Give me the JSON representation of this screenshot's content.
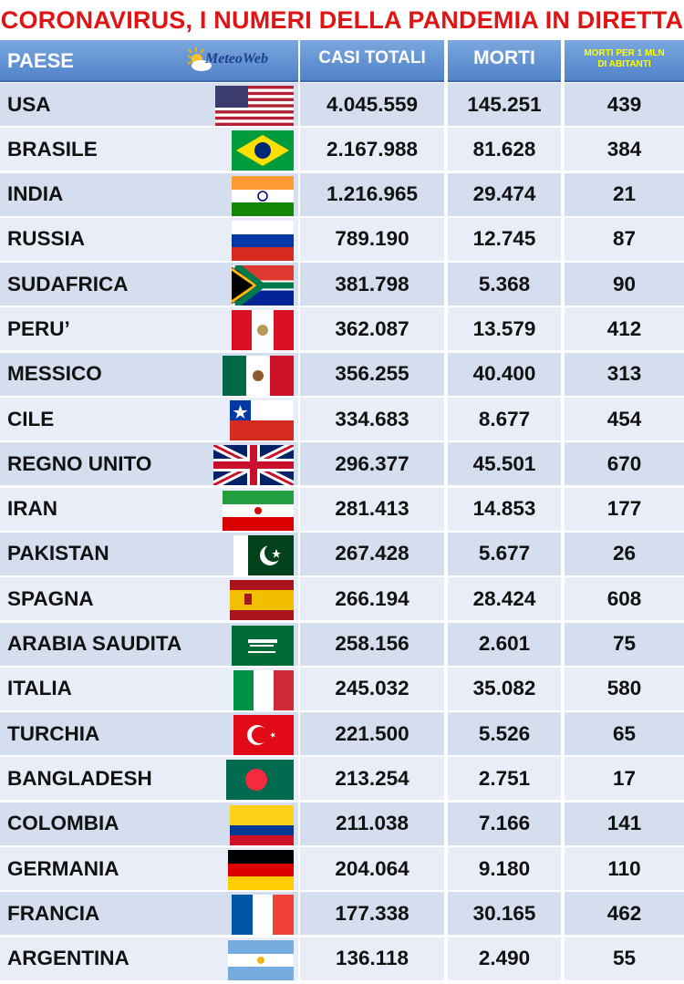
{
  "title": "CORONAVIRUS, I NUMERI DELLA PANDEMIA IN DIRETTA",
  "header": {
    "country": "PAESE",
    "cases": "CASI TOTALI",
    "deaths": "MORTI",
    "per_million_line1": "MORTI PER 1 MLN",
    "per_million_line2": "DI ABITANTI"
  },
  "logo": {
    "text": "MeteoWeb",
    "icon": "sun-cloud-icon"
  },
  "rows": [
    {
      "country": "USA",
      "cases": "4.045.559",
      "deaths": "145.251",
      "per_million": "439",
      "flag": "usa-flag"
    },
    {
      "country": "BRASILE",
      "cases": "2.167.988",
      "deaths": "81.628",
      "per_million": "384",
      "flag": "brazil-flag"
    },
    {
      "country": "INDIA",
      "cases": "1.216.965",
      "deaths": "29.474",
      "per_million": "21",
      "flag": "india-flag"
    },
    {
      "country": "RUSSIA",
      "cases": "789.190",
      "deaths": "12.745",
      "per_million": "87",
      "flag": "russia-flag"
    },
    {
      "country": "SUDAFRICA",
      "cases": "381.798",
      "deaths": "5.368",
      "per_million": "90",
      "flag": "south-africa-flag"
    },
    {
      "country": "PERU’",
      "cases": "362.087",
      "deaths": "13.579",
      "per_million": "412",
      "flag": "peru-flag"
    },
    {
      "country": "MESSICO",
      "cases": "356.255",
      "deaths": "40.400",
      "per_million": "313",
      "flag": "mexico-flag"
    },
    {
      "country": "CILE",
      "cases": "334.683",
      "deaths": "8.677",
      "per_million": "454",
      "flag": "chile-flag"
    },
    {
      "country": "REGNO UNITO",
      "cases": "296.377",
      "deaths": "45.501",
      "per_million": "670",
      "flag": "uk-flag"
    },
    {
      "country": "IRAN",
      "cases": "281.413",
      "deaths": "14.853",
      "per_million": "177",
      "flag": "iran-flag"
    },
    {
      "country": "PAKISTAN",
      "cases": "267.428",
      "deaths": "5.677",
      "per_million": "26",
      "flag": "pakistan-flag"
    },
    {
      "country": "SPAGNA",
      "cases": "266.194",
      "deaths": "28.424",
      "per_million": "608",
      "flag": "spain-flag"
    },
    {
      "country": "ARABIA SAUDITA",
      "cases": "258.156",
      "deaths": "2.601",
      "per_million": "75",
      "flag": "saudi-arabia-flag"
    },
    {
      "country": "ITALIA",
      "cases": "245.032",
      "deaths": "35.082",
      "per_million": "580",
      "flag": "italy-flag"
    },
    {
      "country": "TURCHIA",
      "cases": "221.500",
      "deaths": "5.526",
      "per_million": "65",
      "flag": "turkey-flag"
    },
    {
      "country": "BANGLADESH",
      "cases": "213.254",
      "deaths": "2.751",
      "per_million": "17",
      "flag": "bangladesh-flag"
    },
    {
      "country": "COLOMBIA",
      "cases": "211.038",
      "deaths": "7.166",
      "per_million": "141",
      "flag": "colombia-flag"
    },
    {
      "country": "GERMANIA",
      "cases": "204.064",
      "deaths": "9.180",
      "per_million": "110",
      "flag": "germany-flag"
    },
    {
      "country": "FRANCIA",
      "cases": "177.338",
      "deaths": "30.165",
      "per_million": "462",
      "flag": "france-flag"
    },
    {
      "country": "ARGENTINA",
      "cases": "136.118",
      "deaths": "2.490",
      "per_million": "55",
      "flag": "argentina-flag"
    }
  ],
  "colors": {
    "title": "#e01414",
    "header_bg": "#5b8bd0",
    "row_odd": "#d4deef",
    "row_even": "#e8edf7",
    "highlight_text": "#ffff00"
  }
}
